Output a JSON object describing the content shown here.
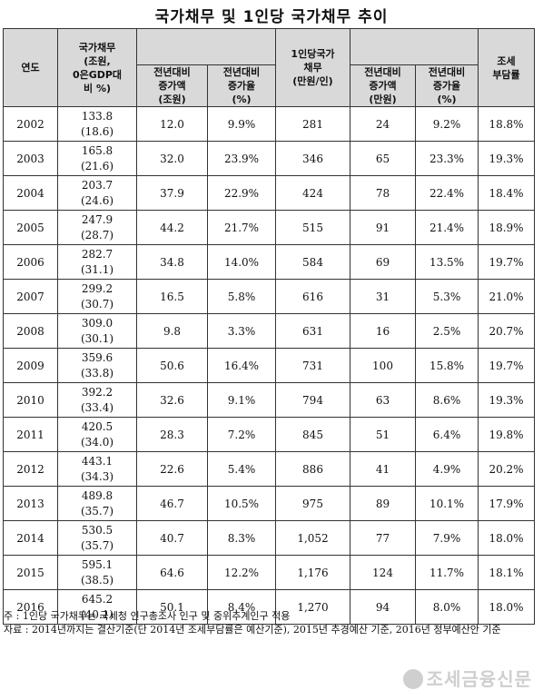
{
  "title": "국가채무 및 1인당 국가채무 추이",
  "headers": {
    "year": "연도",
    "debt_l1": "국가채무",
    "debt_l2": "(조원,",
    "debt_l3": "0은GDP대",
    "debt_l4": "비 %)",
    "yoy_group_a": "",
    "inc_amt_l1": "전년대비",
    "inc_amt_l2": "증가액",
    "inc_amt_l3": "(조원)",
    "inc_rate_l1": "전년대비",
    "inc_rate_l2": "증가율",
    "inc_rate_l3": "(%)",
    "per_capita_l1": "1인당국가",
    "per_capita_l2": "채무",
    "per_capita_l3": "(만원/인)",
    "pc_inc_amt_l1": "전년대비",
    "pc_inc_amt_l2": "증가액",
    "pc_inc_amt_l3": "(만원)",
    "pc_inc_rate_l1": "전년대비",
    "pc_inc_rate_l2": "증가율",
    "pc_inc_rate_l3": "(%)",
    "tax_l1": "조세",
    "tax_l2": "부담률"
  },
  "rows": [
    {
      "year": "2002",
      "debt": "133.8",
      "ratio": "(18.6)",
      "inc_amt": "12.0",
      "inc_rate": "9.9%",
      "per_capita": "281",
      "pc_inc": "24",
      "pc_rate": "9.2%",
      "tax": "18.8%"
    },
    {
      "year": "2003",
      "debt": "165.8",
      "ratio": "(21.6)",
      "inc_amt": "32.0",
      "inc_rate": "23.9%",
      "per_capita": "346",
      "pc_inc": "65",
      "pc_rate": "23.3%",
      "tax": "19.3%"
    },
    {
      "year": "2004",
      "debt": "203.7",
      "ratio": "(24.6)",
      "inc_amt": "37.9",
      "inc_rate": "22.9%",
      "per_capita": "424",
      "pc_inc": "78",
      "pc_rate": "22.4%",
      "tax": "18.4%"
    },
    {
      "year": "2005",
      "debt": "247.9",
      "ratio": "(28.7)",
      "inc_amt": "44.2",
      "inc_rate": "21.7%",
      "per_capita": "515",
      "pc_inc": "91",
      "pc_rate": "21.4%",
      "tax": "18.9%"
    },
    {
      "year": "2006",
      "debt": "282.7",
      "ratio": "(31.1)",
      "inc_amt": "34.8",
      "inc_rate": "14.0%",
      "per_capita": "584",
      "pc_inc": "69",
      "pc_rate": "13.5%",
      "tax": "19.7%"
    },
    {
      "year": "2007",
      "debt": "299.2",
      "ratio": "(30.7)",
      "inc_amt": "16.5",
      "inc_rate": "5.8%",
      "per_capita": "616",
      "pc_inc": "31",
      "pc_rate": "5.3%",
      "tax": "21.0%"
    },
    {
      "year": "2008",
      "debt": "309.0",
      "ratio": "(30.1)",
      "inc_amt": "9.8",
      "inc_rate": "3.3%",
      "per_capita": "631",
      "pc_inc": "16",
      "pc_rate": "2.5%",
      "tax": "20.7%"
    },
    {
      "year": "2009",
      "debt": "359.6",
      "ratio": "(33.8)",
      "inc_amt": "50.6",
      "inc_rate": "16.4%",
      "per_capita": "731",
      "pc_inc": "100",
      "pc_rate": "15.8%",
      "tax": "19.7%"
    },
    {
      "year": "2010",
      "debt": "392.2",
      "ratio": "(33.4)",
      "inc_amt": "32.6",
      "inc_rate": "9.1%",
      "per_capita": "794",
      "pc_inc": "63",
      "pc_rate": "8.6%",
      "tax": "19.3%"
    },
    {
      "year": "2011",
      "debt": "420.5",
      "ratio": "(34.0)",
      "inc_amt": "28.3",
      "inc_rate": "7.2%",
      "per_capita": "845",
      "pc_inc": "51",
      "pc_rate": "6.4%",
      "tax": "19.8%"
    },
    {
      "year": "2012",
      "debt": "443.1",
      "ratio": "(34.3)",
      "inc_amt": "22.6",
      "inc_rate": "5.4%",
      "per_capita": "886",
      "pc_inc": "41",
      "pc_rate": "4.9%",
      "tax": "20.2%"
    },
    {
      "year": "2013",
      "debt": "489.8",
      "ratio": "(35.7)",
      "inc_amt": "46.7",
      "inc_rate": "10.5%",
      "per_capita": "975",
      "pc_inc": "89",
      "pc_rate": "10.1%",
      "tax": "17.9%"
    },
    {
      "year": "2014",
      "debt": "530.5",
      "ratio": "(35.7)",
      "inc_amt": "40.7",
      "inc_rate": "8.3%",
      "per_capita": "1,052",
      "pc_inc": "77",
      "pc_rate": "7.9%",
      "tax": "18.0%"
    },
    {
      "year": "2015",
      "debt": "595.1",
      "ratio": "(38.5)",
      "inc_amt": "64.6",
      "inc_rate": "12.2%",
      "per_capita": "1,176",
      "pc_inc": "124",
      "pc_rate": "11.7%",
      "tax": "18.1%"
    },
    {
      "year": "2016",
      "debt": "645.2",
      "ratio": "(40.1)",
      "inc_amt": "50.1",
      "inc_rate": "8.4%",
      "per_capita": "1,270",
      "pc_inc": "94",
      "pc_rate": "8.0%",
      "tax": "18.0%"
    }
  ],
  "notes": {
    "note1": "주 : 1인당 국가채무는 국세청 인구총조사 인구 및 중위추계인구 적용",
    "note2": "자료 : 2014년까지는 결산기준(단 2014년 조세부담률은 예산기준), 2015년 추경예산 기준, 2016년 정부예산안 기준"
  },
  "watermark": "조세금융신문"
}
